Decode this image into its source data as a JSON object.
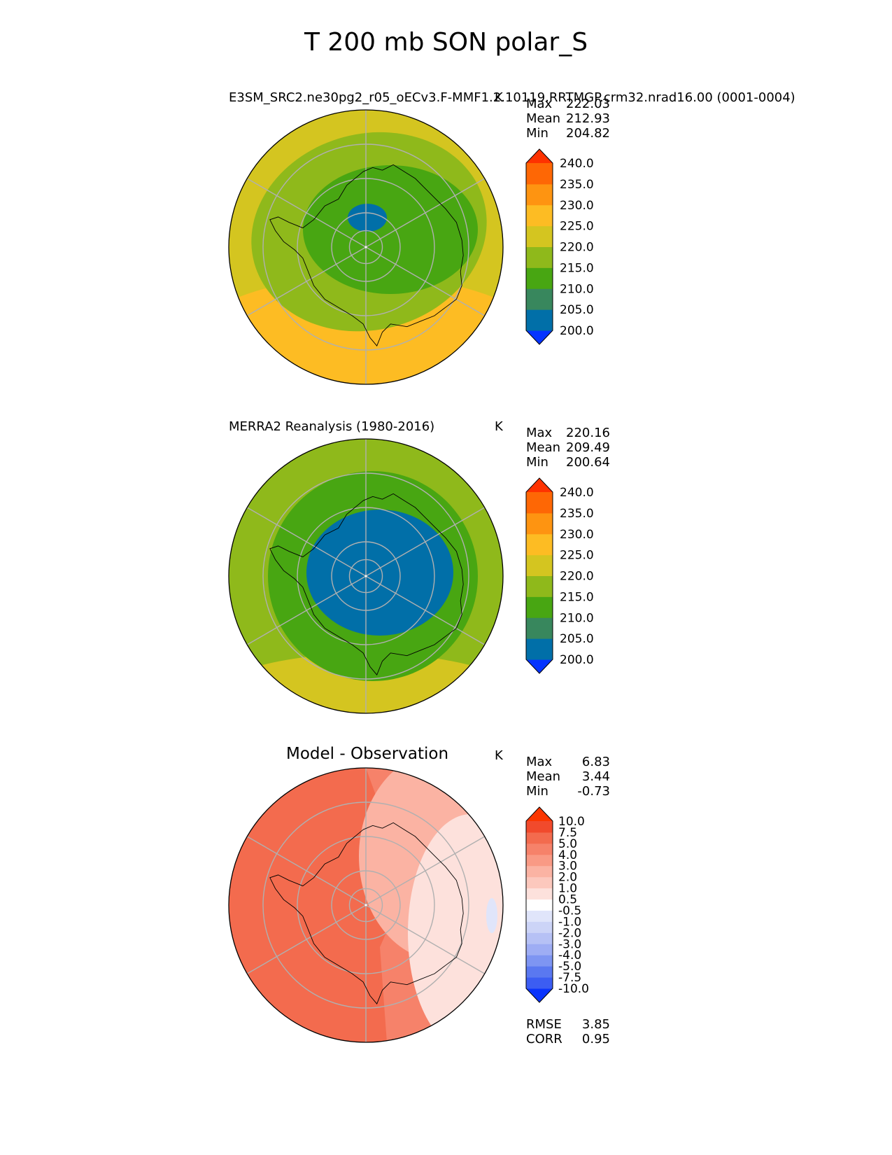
{
  "title": "T 200 mb SON polar_S",
  "panels": [
    {
      "id": "model",
      "left_title": "E3SM_SRC2.ne30pg2_r05_oECv3.F-MMF1.2.10119.RRTMGP.crm32.nrad16.00 (0001-0004)",
      "units": "K",
      "stats": {
        "max_label": "Max",
        "max": "222.03",
        "mean_label": "Mean",
        "mean": "212.93",
        "min_label": "Min",
        "min": "204.82"
      }
    },
    {
      "id": "obs",
      "left_title": "MERRA2 Reanalysis (1980-2016)",
      "units": "K",
      "stats": {
        "max_label": "Max",
        "max": "220.16",
        "mean_label": "Mean",
        "mean": "209.49",
        "min_label": "Min",
        "min": "200.64"
      }
    },
    {
      "id": "diff",
      "center_title": "Model - Observation",
      "units": "K",
      "stats": {
        "max_label": "Max",
        "max": "6.83",
        "mean_label": "Mean",
        "mean": "3.44",
        "min_label": "Min",
        "min": "-0.73"
      },
      "extra_stats": {
        "rmse_label": "RMSE",
        "rmse": "3.85",
        "corr_label": "CORR",
        "corr": "0.95"
      }
    }
  ],
  "chart_data": [
    {
      "type": "heatmap",
      "projection": "south polar stereographic",
      "title": "E3SM_SRC2.ne30pg2_r05_oECv3.F-MMF1.2.10119.RRTMGP.crm32.nrad16.00 (0001-0004)",
      "units": "K",
      "levels": [
        200.0,
        205.0,
        210.0,
        215.0,
        220.0,
        225.0,
        230.0,
        235.0,
        240.0
      ],
      "level_labels": [
        "240.0",
        "235.0",
        "230.0",
        "225.0",
        "220.0",
        "215.0",
        "210.0",
        "205.0",
        "200.0"
      ],
      "colors": [
        "#0534ff",
        "#016fa8",
        "#38875d",
        "#48a612",
        "#8fb91b",
        "#d4c520",
        "#fdbc23",
        "#fe9411",
        "#fe6705",
        "#fe3200"
      ],
      "field_zones_K": {
        "ring_outer_north": 222,
        "ring_outer_south": 226,
        "mid_ring": 217,
        "interior": 212,
        "cold_core": 204
      },
      "stats": {
        "max": 222.03,
        "mean": 212.93,
        "min": 204.82
      }
    },
    {
      "type": "heatmap",
      "projection": "south polar stereographic",
      "title": "MERRA2 Reanalysis (1980-2016)",
      "units": "K",
      "levels": [
        200.0,
        205.0,
        210.0,
        215.0,
        220.0,
        225.0,
        230.0,
        235.0,
        240.0
      ],
      "level_labels": [
        "240.0",
        "235.0",
        "230.0",
        "225.0",
        "220.0",
        "215.0",
        "210.0",
        "205.0",
        "200.0"
      ],
      "colors": [
        "#0534ff",
        "#016fa8",
        "#38875d",
        "#48a612",
        "#8fb91b",
        "#d4c520",
        "#fdbc23",
        "#fe9411",
        "#fe6705",
        "#fe3200"
      ],
      "field_zones_K": {
        "ring_outer": 217,
        "outer_south": 221,
        "mid": 212,
        "cold_core": 203
      },
      "stats": {
        "max": 220.16,
        "mean": 209.49,
        "min": 200.64
      }
    },
    {
      "type": "heatmap",
      "projection": "south polar stereographic",
      "title": "Model - Observation",
      "units": "K",
      "levels": [
        -10.0,
        -7.5,
        -5.0,
        -4.0,
        -3.0,
        -2.0,
        -1.0,
        -0.5,
        0.5,
        1.0,
        2.0,
        3.0,
        4.0,
        5.0,
        7.5,
        10.0
      ],
      "level_labels": [
        "10.0",
        "7.5",
        "5.0",
        "4.0",
        "3.0",
        "2.0",
        "1.0",
        "0.5",
        "-0.5",
        "-1.0",
        "-2.0",
        "-3.0",
        "-4.0",
        "-5.0",
        "-7.5",
        "-10.0"
      ],
      "colors": [
        "#0a34fc",
        "#3c5df2",
        "#5a78f0",
        "#7e95f2",
        "#9eadf4",
        "#b6c1f5",
        "#ccd4f7",
        "#e0e5fa",
        "#ffffff",
        "#fde1dc",
        "#fcc8bd",
        "#fbb3a3",
        "#f99a85",
        "#f6826a",
        "#f36b4e",
        "#f14a2c",
        "#fb3600"
      ],
      "field_zones_K": {
        "west": 5.5,
        "center": 4.5,
        "northeast": 2.5,
        "east": 0.8,
        "east_edge": -0.6
      },
      "stats": {
        "max": 6.83,
        "mean": 3.44,
        "min": -0.73,
        "rmse": 3.85,
        "corr": 0.95
      }
    }
  ]
}
